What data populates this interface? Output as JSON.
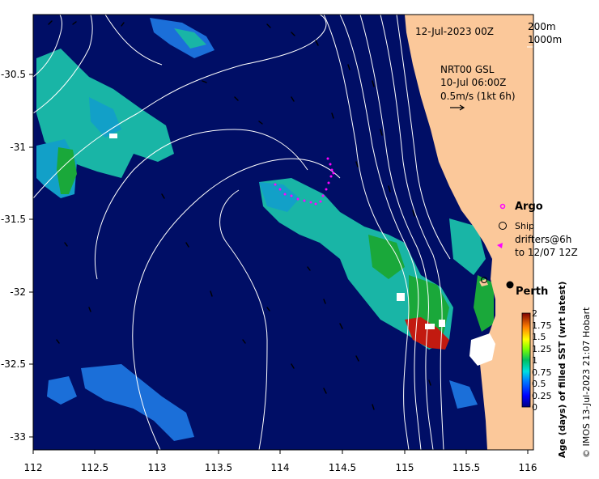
{
  "map": {
    "valid_time": "12-Jul-2023 00Z",
    "depth_legend": [
      "200m",
      "1000m"
    ],
    "current_source": "NRT00 GSL",
    "current_time": "10-Jul 06:00Z",
    "current_scale": "0.5m/s (1kt 6h)",
    "legend": {
      "argo": "Argo",
      "ship": "Ship",
      "drifters_line1": "drifters@6h",
      "drifters_line2": "to 12/07 12Z"
    },
    "city": "Perth",
    "colorbar": {
      "title": "Age (days) of filled SST (wrt latest)",
      "ticks": [
        "2",
        "1.75",
        "1.5",
        "1.25",
        "1",
        "0.75",
        "0.5",
        "0.25",
        "0"
      ]
    },
    "credit": "© IMOS 13-Jul-2023 21:07 Hobart",
    "x_ticks": [
      "112",
      "112.5",
      "113",
      "113.5",
      "114",
      "114.5",
      "115",
      "115.5",
      "116"
    ],
    "y_ticks": [
      "-30.5",
      "-31",
      "-31.5",
      "-32",
      "-32.5",
      "-33"
    ],
    "colors": {
      "ocean": "#000e66",
      "land": "#fbc89a",
      "cyan": "#19b5a6",
      "teal": "#12a0c8",
      "blue": "#1b6fd9",
      "green": "#1aa83a",
      "red": "#c21a10",
      "argo": "#ff00ff"
    }
  }
}
